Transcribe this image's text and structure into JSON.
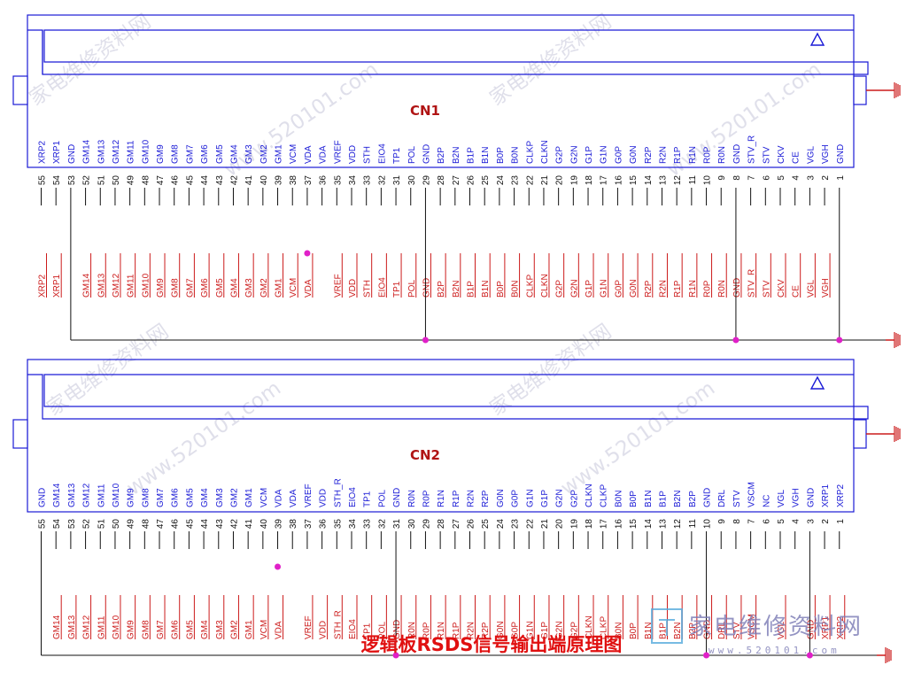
{
  "connectors": [
    {
      "name": "CN1",
      "pin_labels": [
        "XRP2",
        "XRP1",
        "GND",
        "GM14",
        "GM13",
        "GM12",
        "GM11",
        "GM10",
        "GM9",
        "GM8",
        "GM7",
        "GM6",
        "GM5",
        "GM4",
        "GM3",
        "GM2",
        "GM1",
        "VCM",
        "VDA",
        "VDA",
        "VREF",
        "VDD",
        "STH",
        "EIO4",
        "TP1",
        "POL",
        "GND",
        "B2P",
        "B2N",
        "B1P",
        "B1N",
        "B0P",
        "B0N",
        "CLKP",
        "CLKN",
        "G2P",
        "G2N",
        "G1P",
        "G1N",
        "G0P",
        "G0N",
        "R2P",
        "R2N",
        "R1P",
        "R1N",
        "R0P",
        "R0N",
        "GND",
        "STV_R",
        "STV",
        "CKV",
        "CE",
        "VGL",
        "VGH",
        "GND"
      ],
      "pin_numbers": [
        "55",
        "54",
        "53",
        "52",
        "51",
        "50",
        "49",
        "48",
        "47",
        "46",
        "45",
        "44",
        "43",
        "42",
        "41",
        "40",
        "39",
        "38",
        "37",
        "36",
        "35",
        "34",
        "33",
        "32",
        "31",
        "30",
        "29",
        "28",
        "27",
        "26",
        "25",
        "24",
        "23",
        "22",
        "21",
        "20",
        "19",
        "18",
        "17",
        "16",
        "15",
        "14",
        "13",
        "12",
        "11",
        "10",
        "9",
        "8",
        "7",
        "6",
        "5",
        "4",
        "3",
        "2",
        "1"
      ],
      "net_labels": [
        "XRP2",
        "XRP1",
        "",
        "GM14",
        "GM13",
        "GM12",
        "GM11",
        "GM10",
        "GM9",
        "GM8",
        "GM7",
        "GM6",
        "GM5",
        "GM4",
        "GM3",
        "GM2",
        "GM1",
        "VCM",
        "VDA",
        "",
        "VREF",
        "VDD",
        "STH",
        "EIO4",
        "TP1",
        "POL",
        "GND",
        "B2P",
        "B2N",
        "B1P",
        "B1N",
        "B0P",
        "B0N",
        "CLKP",
        "CLKN",
        "G2P",
        "G2N",
        "G1P",
        "G1N",
        "G0P",
        "G0N",
        "R2P",
        "R2N",
        "R1P",
        "R1N",
        "R0P",
        "R0N",
        "GND",
        "STV_R",
        "STV",
        "CKV",
        "CE",
        "VGL",
        "VGH",
        ""
      ]
    },
    {
      "name": "CN2",
      "pin_labels": [
        "GND",
        "GM14",
        "GM13",
        "GM12",
        "GM11",
        "GM10",
        "GM9",
        "GM8",
        "GM7",
        "GM6",
        "GM5",
        "GM4",
        "GM3",
        "GM2",
        "GM1",
        "VCM",
        "VDA",
        "VDA",
        "VREF",
        "VDD",
        "STH_R",
        "EIO4",
        "TP1",
        "POL",
        "GND",
        "R0N",
        "R0P",
        "R1N",
        "R1P",
        "R2N",
        "R2P",
        "G0N",
        "G0P",
        "G1N",
        "G1P",
        "G2N",
        "G2P",
        "CLKN",
        "CLKP",
        "B0N",
        "B0P",
        "B1N",
        "B1P",
        "B2N",
        "B2P",
        "GND",
        "DRL",
        "STV",
        "VSCM",
        "NC",
        "VGL",
        "VGH",
        "GND",
        "XRP1",
        "XRP2"
      ],
      "pin_numbers": [
        "55",
        "54",
        "53",
        "52",
        "51",
        "50",
        "49",
        "48",
        "47",
        "46",
        "45",
        "44",
        "43",
        "42",
        "41",
        "40",
        "39",
        "38",
        "37",
        "36",
        "35",
        "34",
        "33",
        "32",
        "31",
        "30",
        "29",
        "28",
        "27",
        "26",
        "25",
        "24",
        "23",
        "22",
        "21",
        "20",
        "19",
        "18",
        "17",
        "16",
        "15",
        "14",
        "13",
        "12",
        "11",
        "10",
        "9",
        "8",
        "7",
        "6",
        "5",
        "4",
        "3",
        "2",
        "1"
      ],
      "net_labels": [
        "",
        "GM14",
        "GM13",
        "GM12",
        "GM11",
        "GM10",
        "GM9",
        "GM8",
        "GM7",
        "GM6",
        "GM5",
        "GM4",
        "GM3",
        "GM2",
        "GM1",
        "VCM",
        "VDA",
        "",
        "VREF",
        "VDD",
        "STH_R",
        "EIO4",
        "TP1",
        "POL",
        "GND",
        "R0N",
        "R0P",
        "R1N",
        "R1P",
        "R2N",
        "R2P",
        "G0N",
        "G0P",
        "G1N",
        "G1P",
        "G2N",
        "G2P",
        "CLKN",
        "CLKP",
        "B0N",
        "B0P",
        "B1N",
        "B1P",
        "B2N",
        "B2P",
        "GND",
        "DRL",
        "STV",
        "VSCM",
        "",
        "VGL",
        "",
        "GND",
        "XRP1",
        "XRP2"
      ]
    }
  ],
  "caption": "逻辑板RSDS信号输出端原理图",
  "watermark": {
    "text": "家电维修资料网",
    "url": "www.520101.com",
    "logo_text": "家电维修资料网",
    "logo_url": "www.520101.com"
  },
  "colors": {
    "outline": "#1a1ad6",
    "net_label": "#cc1b1b",
    "junction": "#e020c8",
    "ground": "#cc1b1b",
    "wire": "#111111"
  }
}
